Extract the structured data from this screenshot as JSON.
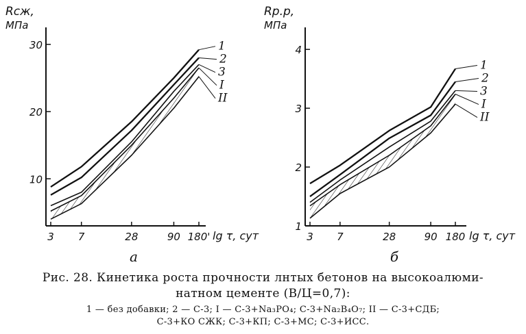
{
  "caption": {
    "line1": "Рис. 28. Кинетика роста прочности лнтых бетонов на высокоалюми-",
    "line2": "натном цементе (В/Ц=0,7):",
    "legend_line1": "1 — без добавки; 2 — С-3; I — С-3+Na₃PO₄; С-3+Na₂B₄O₇; II — С-3+СДБ;",
    "legend_line2": "С-3+КО СЖК; С-3+КП; С-3+МС; С-3+ИСС."
  },
  "chart_data": [
    {
      "type": "line",
      "panel_label": "а",
      "ylabel": "Rсж,",
      "yunit": "МПа",
      "xlabel": "lg τ, сут",
      "x_scale": "log",
      "x": [
        3,
        7,
        28,
        90,
        180
      ],
      "x_tick_labels": [
        "3",
        "7",
        "28",
        "90",
        "180'"
      ],
      "y_ticks": [
        10,
        20,
        30
      ],
      "ylim": [
        3,
        31
      ],
      "grid": false,
      "band_between": [
        "I",
        "II"
      ],
      "band_fill": "diagonal hatch",
      "series": [
        {
          "name": "1",
          "values": [
            8.8,
            11.8,
            18.5,
            25.0,
            29.2
          ]
        },
        {
          "name": "2",
          "values": [
            7.6,
            10.2,
            17.2,
            24.0,
            28.0
          ]
        },
        {
          "name": "3",
          "values": [
            6.0,
            8.0,
            15.5,
            23.0,
            27.0
          ]
        },
        {
          "name": "I",
          "values": [
            5.2,
            7.5,
            15.0,
            22.0,
            26.5
          ]
        },
        {
          "name": "II",
          "values": [
            4.0,
            6.3,
            13.5,
            20.5,
            25.2
          ]
        }
      ]
    },
    {
      "type": "line",
      "panel_label": "б",
      "ylabel": "Rр.р,",
      "yunit": "МПа",
      "xlabel": "lg τ, сут",
      "x_scale": "log",
      "x": [
        3,
        7,
        28,
        90,
        180
      ],
      "x_tick_labels": [
        "3",
        "7",
        "28",
        "90",
        "180"
      ],
      "y_ticks": [
        1,
        2,
        3,
        4
      ],
      "ylim": [
        1,
        4.2
      ],
      "grid": false,
      "band_between": [
        "I",
        "II"
      ],
      "band_fill": "diagonal hatch",
      "series": [
        {
          "name": "1",
          "values": [
            1.72,
            2.03,
            2.62,
            3.02,
            3.67
          ]
        },
        {
          "name": "2",
          "values": [
            1.5,
            1.87,
            2.49,
            2.88,
            3.45
          ]
        },
        {
          "name": "3",
          "values": [
            1.4,
            1.78,
            2.34,
            2.78,
            3.3
          ]
        },
        {
          "name": "I",
          "values": [
            1.34,
            1.7,
            2.2,
            2.7,
            3.24
          ]
        },
        {
          "name": "II",
          "values": [
            1.13,
            1.55,
            2.0,
            2.58,
            3.07
          ]
        }
      ]
    }
  ]
}
